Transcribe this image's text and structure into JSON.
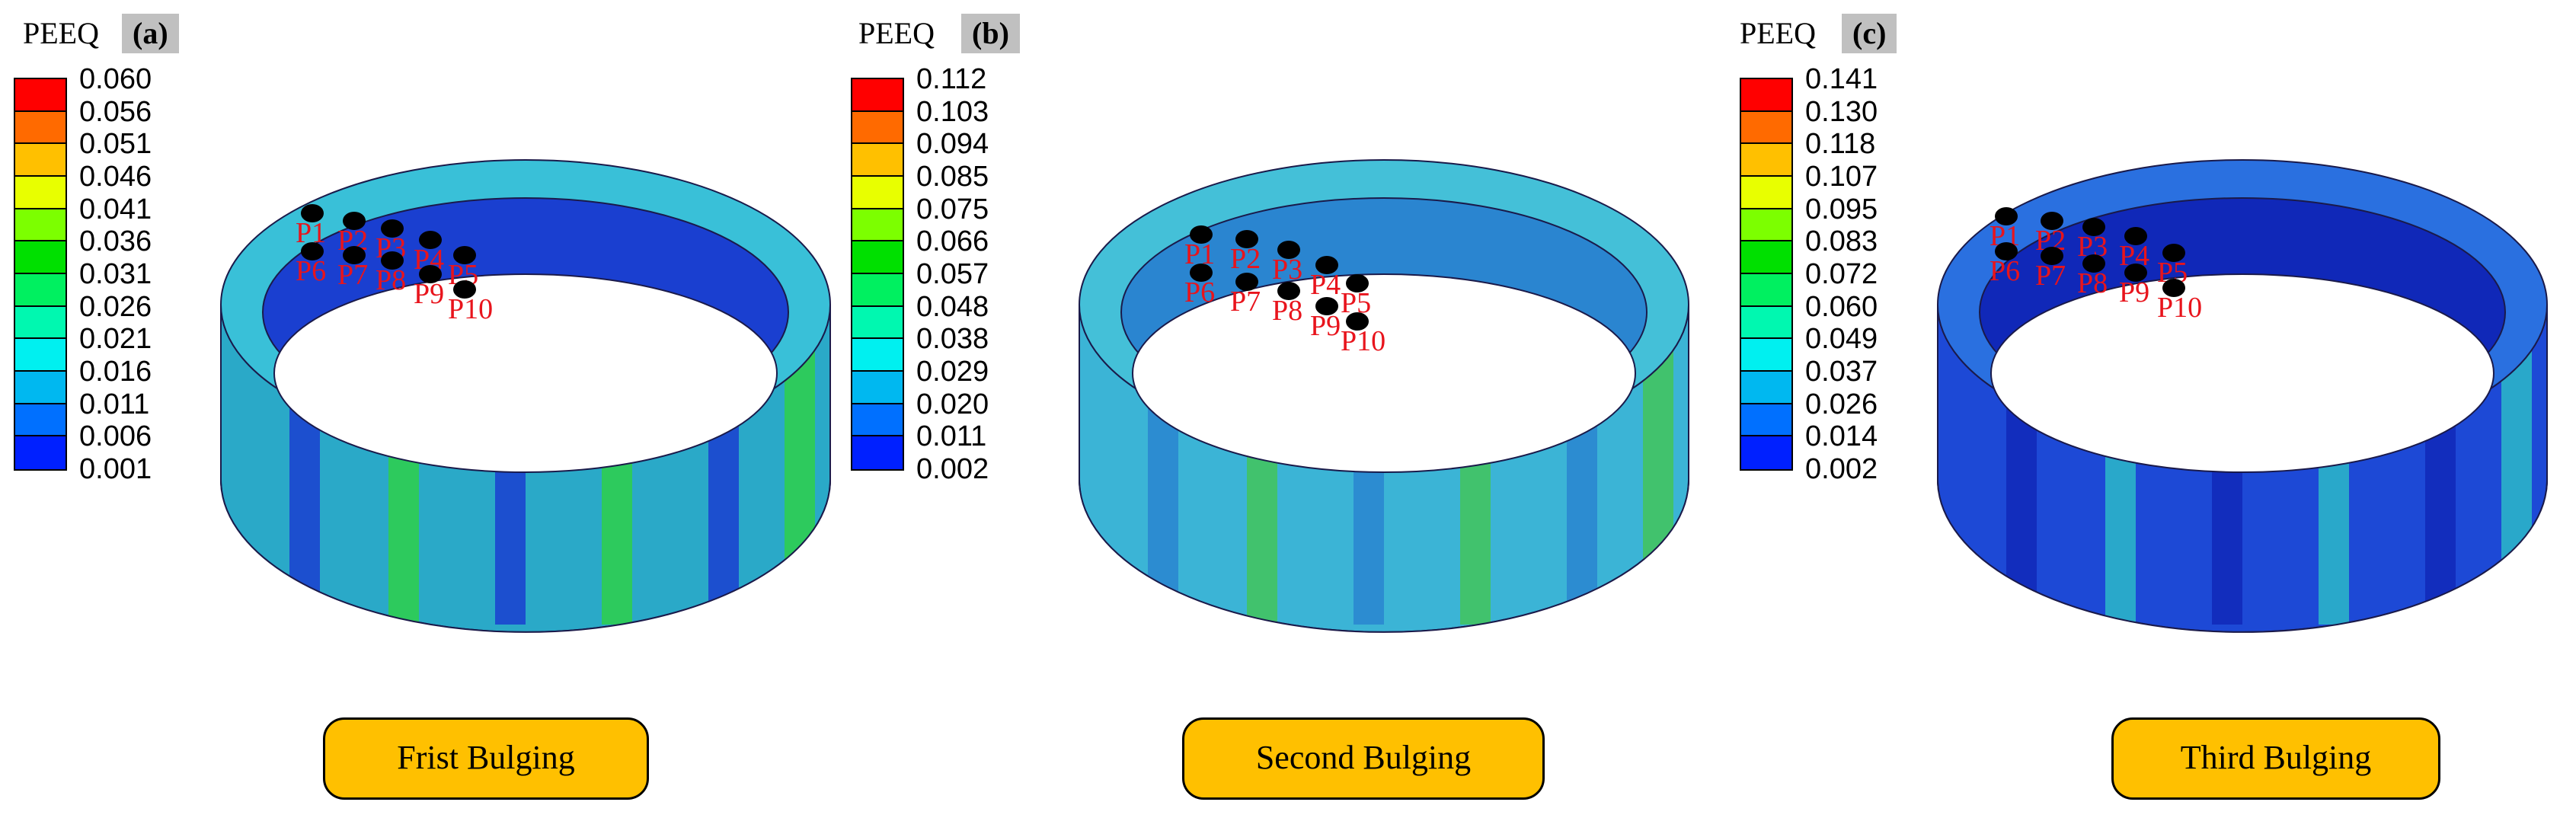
{
  "panels": [
    {
      "legend_title": "PEEQ",
      "tag": "(a)",
      "ticks": [
        "0.060",
        "0.056",
        "0.051",
        "0.046",
        "0.041",
        "0.036",
        "0.031",
        "0.026",
        "0.021",
        "0.016",
        "0.011",
        "0.006",
        "0.001"
      ],
      "points": [
        "P1",
        "P2",
        "P3",
        "P4",
        "P5",
        "P6",
        "P7",
        "P8",
        "P9",
        "P10"
      ],
      "caption": "Frist Bulging"
    },
    {
      "legend_title": "PEEQ",
      "tag": "(b)",
      "ticks": [
        "0.112",
        "0.103",
        "0.094",
        "0.085",
        "0.075",
        "0.066",
        "0.057",
        "0.048",
        "0.038",
        "0.029",
        "0.020",
        "0.011",
        "0.002"
      ],
      "points": [
        "P1",
        "P2",
        "P3",
        "P4",
        "P5",
        "P6",
        "P7",
        "P8",
        "P9",
        "P10"
      ],
      "caption": "Second Bulging"
    },
    {
      "legend_title": "PEEQ",
      "tag": "(c)",
      "ticks": [
        "0.141",
        "0.130",
        "0.118",
        "0.107",
        "0.095",
        "0.083",
        "0.072",
        "0.060",
        "0.049",
        "0.037",
        "0.026",
        "0.014",
        "0.002"
      ],
      "points": [
        "P1",
        "P2",
        "P3",
        "P4",
        "P5",
        "P6",
        "P7",
        "P8",
        "P9",
        "P10"
      ],
      "caption": "Third Bulging"
    }
  ],
  "colors": {
    "legend_scale": [
      "#ff0000",
      "#ff6a00",
      "#ffc000",
      "#e8ff00",
      "#7cff00",
      "#00e000",
      "#00f060",
      "#00f8b0",
      "#00f0f0",
      "#00b8f0",
      "#0070ff",
      "#0020ff"
    ],
    "caption_fill": "#ffc000",
    "point_label": "#e8141c"
  }
}
